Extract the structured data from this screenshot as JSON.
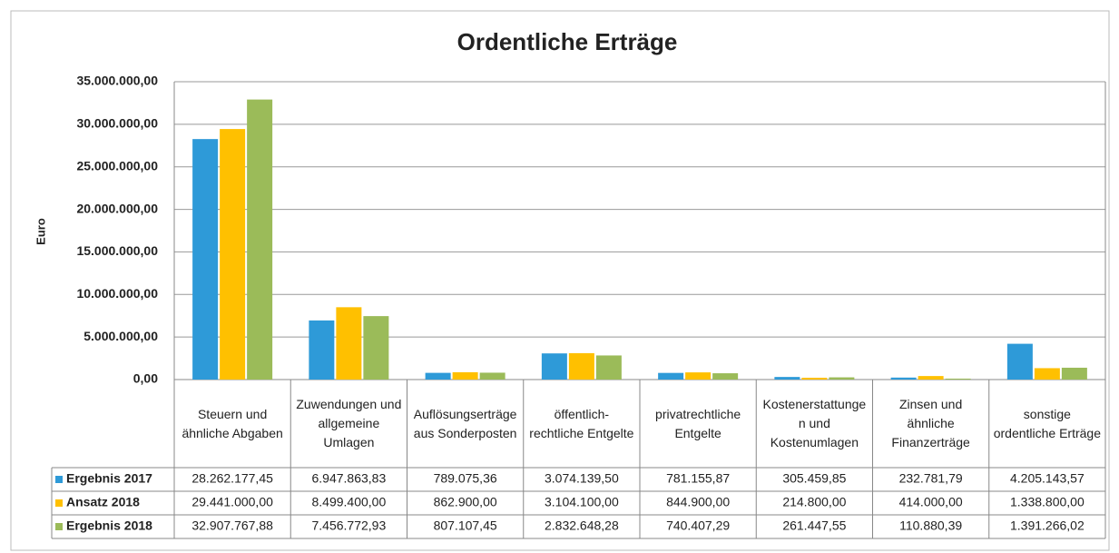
{
  "chart_data": {
    "type": "bar",
    "title": "Ordentliche Erträge",
    "y_label": "Euro",
    "categories": [
      "Steuern und ähnliche Abgaben",
      "Zuwendungen und allgemeine Umlagen",
      "Auflösungserträge aus Sonderposten",
      "öffentlich-rechtliche Entgelte",
      "privatrechtliche Entgelte",
      "Kostenerstattungen und Kostenumlagen",
      "Zinsen und ähnliche Finanzerträge",
      "sonstige ordentliche Erträge"
    ],
    "series": [
      {
        "name": "Ergebnis 2017",
        "color": "#2e9ad8",
        "values": [
          28262177.45,
          6947863.83,
          789075.36,
          3074139.5,
          781155.87,
          305459.85,
          232781.79,
          4205143.57
        ],
        "value_labels": [
          "28.262.177,45",
          "6.947.863,83",
          "789.075,36",
          "3.074.139,50",
          "781.155,87",
          "305.459,85",
          "232.781,79",
          "4.205.143,57"
        ]
      },
      {
        "name": "Ansatz 2018",
        "color": "#ffc000",
        "values": [
          29441000.0,
          8499400.0,
          862900.0,
          3104100.0,
          844900.0,
          214800.0,
          414000.0,
          1338800.0
        ],
        "value_labels": [
          "29.441.000,00",
          "8.499.400,00",
          "862.900,00",
          "3.104.100,00",
          "844.900,00",
          "214.800,00",
          "414.000,00",
          "1.338.800,00"
        ]
      },
      {
        "name": "Ergebnis 2018",
        "color": "#9bbb59",
        "values": [
          32907767.88,
          7456772.93,
          807107.45,
          2832648.28,
          740407.29,
          261447.55,
          110880.39,
          1391266.02
        ],
        "value_labels": [
          "32.907.767,88",
          "7.456.772,93",
          "807.107,45",
          "2.832.648,28",
          "740.407,29",
          "261.447,55",
          "110.880,39",
          "1.391.266,02"
        ]
      }
    ],
    "ylim": [
      0,
      35000000
    ],
    "yticks": [
      {
        "value": 0,
        "label": "0,00"
      },
      {
        "value": 5000000,
        "label": "5.000.000,00"
      },
      {
        "value": 10000000,
        "label": "10.000.000,00"
      },
      {
        "value": 15000000,
        "label": "15.000.000,00"
      },
      {
        "value": 20000000,
        "label": "20.000.000,00"
      },
      {
        "value": 25000000,
        "label": "25.000.000,00"
      },
      {
        "value": 30000000,
        "label": "30.000.000,00"
      },
      {
        "value": 35000000,
        "label": "35.000.000,00"
      }
    ],
    "grid": true
  }
}
